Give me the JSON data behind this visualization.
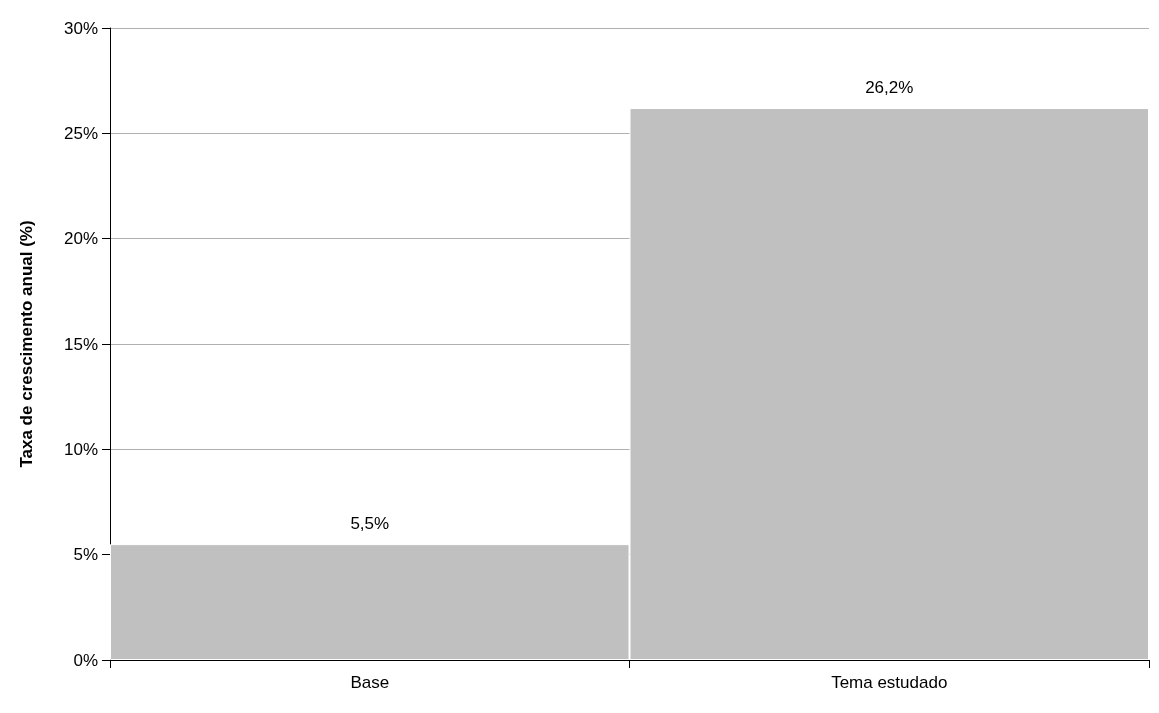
{
  "chart_data": {
    "type": "bar",
    "ylabel": "Taxa de crescimento anual (%)",
    "categories": [
      "Base",
      "Tema estudado"
    ],
    "values": [
      5.5,
      26.2
    ],
    "color": "#c0c0c0",
    "value_labels": [
      "5,5%",
      "26,2%"
    ],
    "ylim": [
      0,
      30
    ],
    "yticks": [
      {
        "value": 0,
        "label": "0%"
      },
      {
        "value": 5,
        "label": "5%"
      },
      {
        "value": 10,
        "label": "10%"
      },
      {
        "value": 15,
        "label": "15%"
      },
      {
        "value": 20,
        "label": "20%"
      },
      {
        "value": 25,
        "label": "25%"
      },
      {
        "value": 30,
        "label": "30%"
      }
    ],
    "grid": "y"
  }
}
